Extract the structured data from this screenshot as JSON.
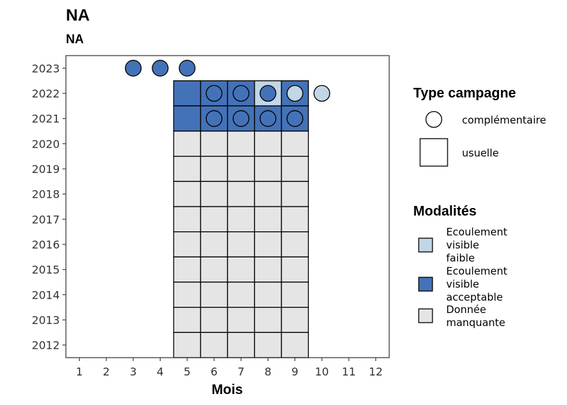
{
  "chart_data": {
    "type": "heatmap",
    "title": "NA",
    "subtitle": "NA",
    "xlabel": "Mois",
    "ylabel": "",
    "x_ticks": [
      1,
      2,
      3,
      4,
      5,
      6,
      7,
      8,
      9,
      10,
      11,
      12
    ],
    "y_ticks": [
      2012,
      2013,
      2014,
      2015,
      2016,
      2017,
      2018,
      2019,
      2020,
      2021,
      2022,
      2023
    ],
    "xlim": [
      0.5,
      12.5
    ],
    "ylim": [
      2011.5,
      2023.5
    ],
    "colors": {
      "faible": "#c1d6e6",
      "acceptable": "#4472b8",
      "manquante": "#e5e5e5"
    },
    "tiles": [
      {
        "year": 2022,
        "month": 5,
        "mod": "acceptable"
      },
      {
        "year": 2022,
        "month": 6,
        "mod": "acceptable"
      },
      {
        "year": 2022,
        "month": 7,
        "mod": "acceptable"
      },
      {
        "year": 2022,
        "month": 8,
        "mod": "faible"
      },
      {
        "year": 2022,
        "month": 9,
        "mod": "acceptable"
      },
      {
        "year": 2021,
        "month": 5,
        "mod": "acceptable"
      },
      {
        "year": 2021,
        "month": 6,
        "mod": "acceptable"
      },
      {
        "year": 2021,
        "month": 7,
        "mod": "acceptable"
      },
      {
        "year": 2021,
        "month": 8,
        "mod": "acceptable"
      },
      {
        "year": 2021,
        "month": 9,
        "mod": "acceptable"
      },
      {
        "year": 2020,
        "month": 5,
        "mod": "manquante"
      },
      {
        "year": 2020,
        "month": 6,
        "mod": "manquante"
      },
      {
        "year": 2020,
        "month": 7,
        "mod": "manquante"
      },
      {
        "year": 2020,
        "month": 8,
        "mod": "manquante"
      },
      {
        "year": 2020,
        "month": 9,
        "mod": "manquante"
      },
      {
        "year": 2019,
        "month": 5,
        "mod": "manquante"
      },
      {
        "year": 2019,
        "month": 6,
        "mod": "manquante"
      },
      {
        "year": 2019,
        "month": 7,
        "mod": "manquante"
      },
      {
        "year": 2019,
        "month": 8,
        "mod": "manquante"
      },
      {
        "year": 2019,
        "month": 9,
        "mod": "manquante"
      },
      {
        "year": 2018,
        "month": 5,
        "mod": "manquante"
      },
      {
        "year": 2018,
        "month": 6,
        "mod": "manquante"
      },
      {
        "year": 2018,
        "month": 7,
        "mod": "manquante"
      },
      {
        "year": 2018,
        "month": 8,
        "mod": "manquante"
      },
      {
        "year": 2018,
        "month": 9,
        "mod": "manquante"
      },
      {
        "year": 2017,
        "month": 5,
        "mod": "manquante"
      },
      {
        "year": 2017,
        "month": 6,
        "mod": "manquante"
      },
      {
        "year": 2017,
        "month": 7,
        "mod": "manquante"
      },
      {
        "year": 2017,
        "month": 8,
        "mod": "manquante"
      },
      {
        "year": 2017,
        "month": 9,
        "mod": "manquante"
      },
      {
        "year": 2016,
        "month": 5,
        "mod": "manquante"
      },
      {
        "year": 2016,
        "month": 6,
        "mod": "manquante"
      },
      {
        "year": 2016,
        "month": 7,
        "mod": "manquante"
      },
      {
        "year": 2016,
        "month": 8,
        "mod": "manquante"
      },
      {
        "year": 2016,
        "month": 9,
        "mod": "manquante"
      },
      {
        "year": 2015,
        "month": 5,
        "mod": "manquante"
      },
      {
        "year": 2015,
        "month": 6,
        "mod": "manquante"
      },
      {
        "year": 2015,
        "month": 7,
        "mod": "manquante"
      },
      {
        "year": 2015,
        "month": 8,
        "mod": "manquante"
      },
      {
        "year": 2015,
        "month": 9,
        "mod": "manquante"
      },
      {
        "year": 2014,
        "month": 5,
        "mod": "manquante"
      },
      {
        "year": 2014,
        "month": 6,
        "mod": "manquante"
      },
      {
        "year": 2014,
        "month": 7,
        "mod": "manquante"
      },
      {
        "year": 2014,
        "month": 8,
        "mod": "manquante"
      },
      {
        "year": 2014,
        "month": 9,
        "mod": "manquante"
      },
      {
        "year": 2013,
        "month": 5,
        "mod": "manquante"
      },
      {
        "year": 2013,
        "month": 6,
        "mod": "manquante"
      },
      {
        "year": 2013,
        "month": 7,
        "mod": "manquante"
      },
      {
        "year": 2013,
        "month": 8,
        "mod": "manquante"
      },
      {
        "year": 2013,
        "month": 9,
        "mod": "manquante"
      },
      {
        "year": 2012,
        "month": 5,
        "mod": "manquante"
      },
      {
        "year": 2012,
        "month": 6,
        "mod": "manquante"
      },
      {
        "year": 2012,
        "month": 7,
        "mod": "manquante"
      },
      {
        "year": 2012,
        "month": 8,
        "mod": "manquante"
      },
      {
        "year": 2012,
        "month": 9,
        "mod": "manquante"
      }
    ],
    "points": [
      {
        "year": 2023,
        "month": 3,
        "mod": "acceptable"
      },
      {
        "year": 2023,
        "month": 4,
        "mod": "acceptable"
      },
      {
        "year": 2023,
        "month": 5,
        "mod": "acceptable"
      },
      {
        "year": 2022,
        "month": 6,
        "mod": "acceptable"
      },
      {
        "year": 2022,
        "month": 7,
        "mod": "acceptable"
      },
      {
        "year": 2022,
        "month": 8,
        "mod": "acceptable"
      },
      {
        "year": 2022,
        "month": 9,
        "mod": "faible"
      },
      {
        "year": 2022,
        "month": 10,
        "mod": "faible"
      },
      {
        "year": 2021,
        "month": 6,
        "mod": "acceptable"
      },
      {
        "year": 2021,
        "month": 7,
        "mod": "acceptable"
      },
      {
        "year": 2021,
        "month": 8,
        "mod": "acceptable"
      },
      {
        "year": 2021,
        "month": 9,
        "mod": "acceptable"
      }
    ],
    "legend": {
      "placement": "right",
      "type_title": "Type campagne",
      "type_items": [
        {
          "shape": "circle",
          "label": "complémentaire"
        },
        {
          "shape": "square",
          "label": "usuelle"
        }
      ],
      "mod_title": "Modalités",
      "mod_items": [
        {
          "key": "faible",
          "lines": [
            "Ecoulement",
            "visible",
            "faible"
          ]
        },
        {
          "key": "acceptable",
          "lines": [
            "Ecoulement",
            "visible",
            "acceptable"
          ]
        },
        {
          "key": "manquante",
          "lines": [
            "Donnée",
            "manquante"
          ]
        }
      ]
    }
  }
}
